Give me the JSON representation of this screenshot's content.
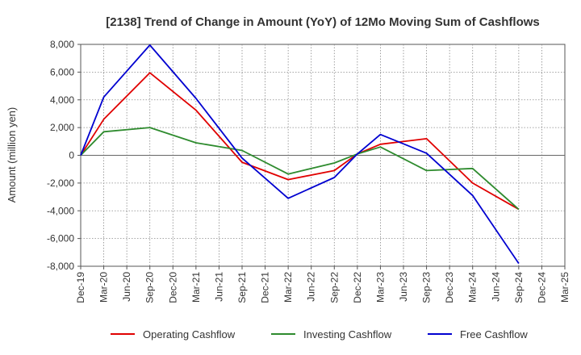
{
  "chart_data": {
    "type": "line",
    "title": "[2138]  Trend of Change in Amount (YoY) of 12Mo Moving Sum of Cashflows",
    "xlabel": "",
    "ylabel": "Amount (million yen)",
    "ylim": [
      -8000,
      8000
    ],
    "yticks": [
      8000,
      6000,
      4000,
      2000,
      0,
      -2000,
      -4000,
      -6000,
      -8000
    ],
    "ytick_labels": [
      "8,000",
      "6,000",
      "4,000",
      "2,000",
      "0",
      "-2,000",
      "-4,000",
      "-6,000",
      "-8,000"
    ],
    "categories": [
      "Dec-19",
      "Mar-20",
      "Jun-20",
      "Sep-20",
      "Dec-20",
      "Mar-21",
      "Jun-21",
      "Sep-21",
      "Dec-21",
      "Mar-22",
      "Jun-22",
      "Sep-22",
      "Dec-22",
      "Mar-23",
      "Jun-23",
      "Sep-23",
      "Dec-23",
      "Mar-24",
      "Jun-24",
      "Sep-24",
      "Dec-24",
      "Mar-25"
    ],
    "grid": true,
    "legend_position": "bottom",
    "series": [
      {
        "name": "Operating Cashflow",
        "color": "#e00000",
        "values": [
          0,
          2600,
          null,
          5950,
          null,
          3250,
          null,
          -500,
          null,
          -1750,
          null,
          -1100,
          100,
          800,
          null,
          1200,
          null,
          -2000,
          null,
          -3900,
          null,
          null
        ]
      },
      {
        "name": "Investing Cashflow",
        "color": "#2e8b2e",
        "values": [
          0,
          1700,
          null,
          2000,
          null,
          900,
          null,
          350,
          null,
          -1350,
          null,
          -550,
          100,
          600,
          null,
          -1100,
          null,
          -950,
          null,
          -3900,
          null,
          null
        ]
      },
      {
        "name": "Free Cashflow",
        "color": "#0000d0",
        "values": [
          0,
          4200,
          null,
          7950,
          null,
          4100,
          null,
          -200,
          null,
          -3100,
          null,
          -1600,
          100,
          1500,
          null,
          150,
          null,
          -2900,
          null,
          -7800,
          null,
          null
        ]
      }
    ]
  }
}
